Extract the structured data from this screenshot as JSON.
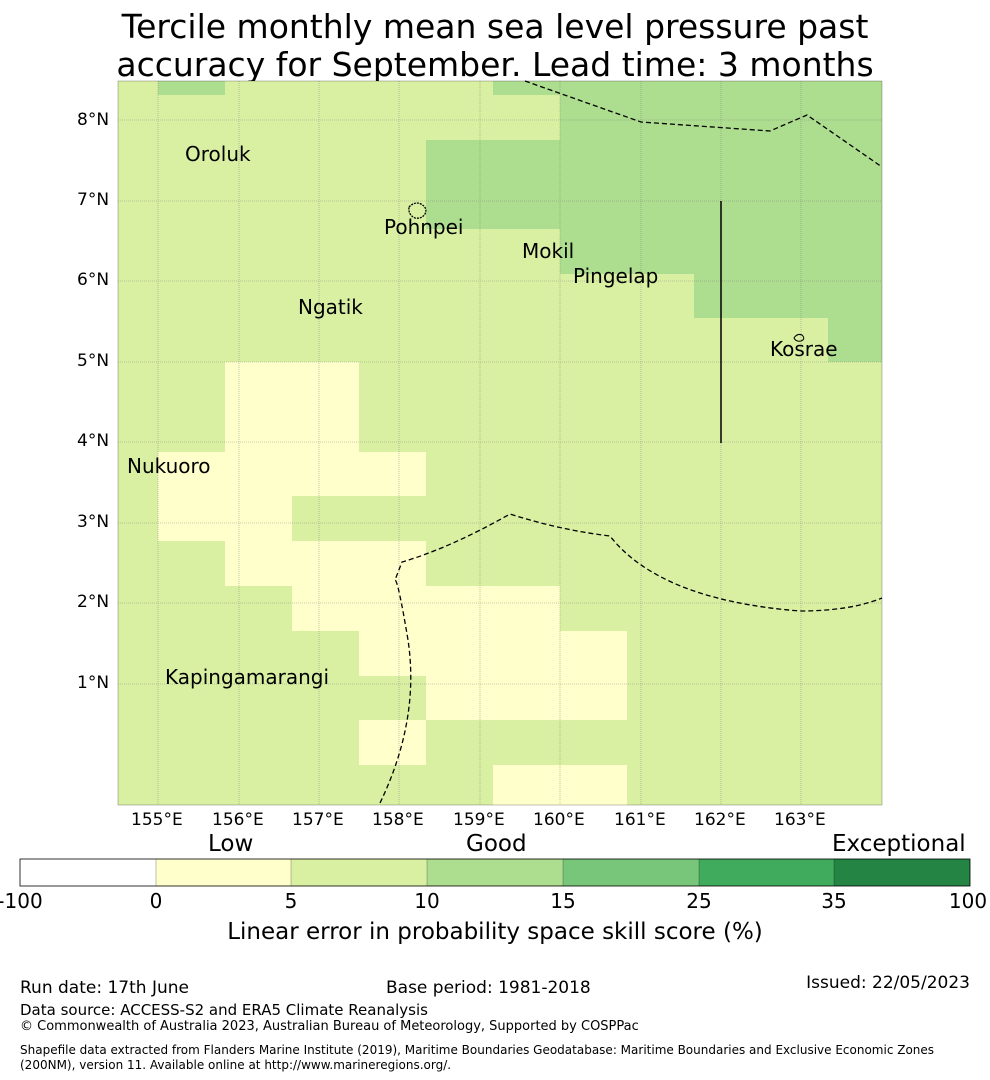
{
  "title": {
    "line1": "Tercile monthly mean sea level pressure past",
    "line2": "accuracy for September. Lead time: 3 months"
  },
  "map": {
    "lat_labels": [
      "8°N",
      "7°N",
      "6°N",
      "5°N",
      "4°N",
      "3°N",
      "2°N",
      "1°N"
    ],
    "lon_labels": [
      "155°E",
      "156°E",
      "157°E",
      "158°E",
      "159°E",
      "160°E",
      "161°E",
      "162°E",
      "163°E"
    ],
    "places": [
      "Oroluk",
      "Pohnpei",
      "Mokil",
      "Pingelap",
      "Ngatik",
      "Kosrae",
      "Nukuoro",
      "Kapingamarangi"
    ],
    "colors": {
      "low": "#ffffcc",
      "light_green": "#d9f0a3",
      "mid_green": "#addd8e"
    }
  },
  "legend": {
    "categories": [
      "Low",
      "Good",
      "Exceptional"
    ],
    "ticks": [
      "-100",
      "0",
      "5",
      "10",
      "15",
      "25",
      "35",
      "100"
    ],
    "colors": [
      "#ffffff",
      "#ffffcc",
      "#d9f0a3",
      "#addd8e",
      "#78c679",
      "#41ab5d",
      "#238443"
    ],
    "label": "Linear error in probability space skill score (%)"
  },
  "footer": {
    "run_date": "Run date: 17th June",
    "base_period": "Base period: 1981-2018",
    "issued": "Issued: 22/05/2023",
    "data_source": "Data source: ACCESS-S2 and ERA5 Climate Reanalysis",
    "copyright": "© Commonwealth of Australia 2023, Australian Bureau of Meteorology, Supported by COSPPac",
    "shapefile_line1": "Shapefile data extracted from Flanders Marine Institute (2019), Maritime Boundaries Geodatabase: Maritime Boundaries and Exclusive Economic Zones",
    "shapefile_line2": "(200NM), version 11. Available online at http://www.marineregions.org/."
  }
}
